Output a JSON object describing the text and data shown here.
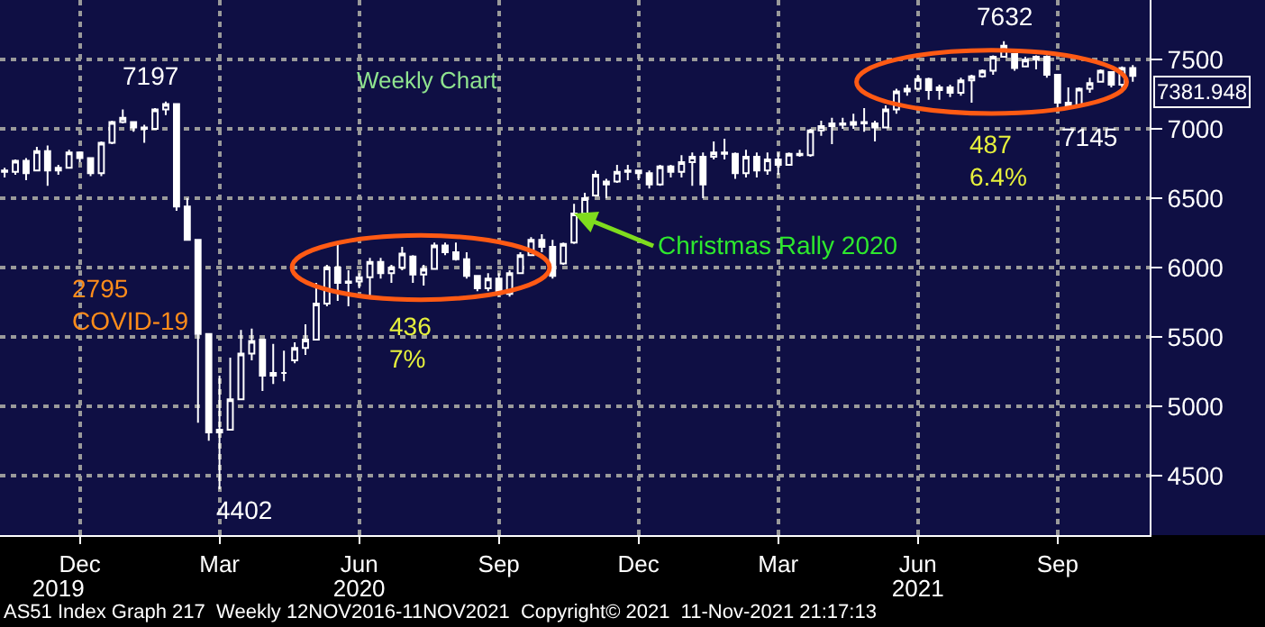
{
  "chart_data": {
    "type": "candlestick",
    "title": "Weekly Chart",
    "color": "#ffffff",
    "grid": true,
    "legend": false,
    "x": [
      "2019-11-04",
      "2019-11-11",
      "2019-11-18",
      "2019-11-25",
      "2019-12-02",
      "2019-12-09",
      "2019-12-16",
      "2019-12-23",
      "2019-12-30",
      "2020-01-06",
      "2020-01-13",
      "2020-01-20",
      "2020-01-27",
      "2020-02-03",
      "2020-02-10",
      "2020-02-17",
      "2020-02-24",
      "2020-03-02",
      "2020-03-09",
      "2020-03-16",
      "2020-03-23",
      "2020-03-30",
      "2020-04-06",
      "2020-04-13",
      "2020-04-20",
      "2020-04-27",
      "2020-05-04",
      "2020-05-11",
      "2020-05-18",
      "2020-05-25",
      "2020-06-01",
      "2020-06-08",
      "2020-06-15",
      "2020-06-22",
      "2020-06-29",
      "2020-07-06",
      "2020-07-13",
      "2020-07-20",
      "2020-07-27",
      "2020-08-03",
      "2020-08-10",
      "2020-08-17",
      "2020-08-24",
      "2020-08-31",
      "2020-09-07",
      "2020-09-14",
      "2020-09-21",
      "2020-09-28",
      "2020-10-05",
      "2020-10-12",
      "2020-10-19",
      "2020-10-26",
      "2020-11-02",
      "2020-11-09",
      "2020-11-16",
      "2020-11-23",
      "2020-11-30",
      "2020-12-07",
      "2020-12-14",
      "2020-12-21",
      "2020-12-28",
      "2021-01-04",
      "2021-01-11",
      "2021-01-18",
      "2021-01-25",
      "2021-02-01",
      "2021-02-08",
      "2021-02-15",
      "2021-02-22",
      "2021-03-01",
      "2021-03-08",
      "2021-03-15",
      "2021-03-22",
      "2021-03-29",
      "2021-04-05",
      "2021-04-12",
      "2021-04-19",
      "2021-04-26",
      "2021-05-03",
      "2021-05-10",
      "2021-05-17",
      "2021-05-24",
      "2021-05-31",
      "2021-06-07",
      "2021-06-14",
      "2021-06-21",
      "2021-06-28",
      "2021-07-05",
      "2021-07-12",
      "2021-07-19",
      "2021-07-26",
      "2021-08-02",
      "2021-08-09",
      "2021-08-16",
      "2021-08-23",
      "2021-08-30",
      "2021-09-06",
      "2021-09-13",
      "2021-09-20",
      "2021-09-27",
      "2021-10-04",
      "2021-10-11",
      "2021-10-18",
      "2021-10-25",
      "2021-11-01",
      "2021-11-08"
    ],
    "ohlc": [
      [
        6700,
        6720,
        6650,
        6690
      ],
      [
        6690,
        6780,
        6670,
        6770
      ],
      [
        6770,
        6790,
        6630,
        6680
      ],
      [
        6700,
        6870,
        6700,
        6840
      ],
      [
        6840,
        6880,
        6590,
        6700
      ],
      [
        6700,
        6740,
        6670,
        6720
      ],
      [
        6720,
        6850,
        6720,
        6830
      ],
      [
        6830,
        6830,
        6760,
        6790
      ],
      [
        6790,
        6790,
        6660,
        6680
      ],
      [
        6680,
        6910,
        6660,
        6900
      ],
      [
        6900,
        7060,
        6890,
        7050
      ],
      [
        7050,
        7140,
        7040,
        7080
      ],
      [
        7050,
        7050,
        6980,
        7010
      ],
      [
        7010,
        7030,
        6900,
        7000
      ],
      [
        7000,
        7150,
        7000,
        7140
      ],
      [
        7140,
        7197,
        7100,
        7180
      ],
      [
        7180,
        7180,
        6410,
        6440
      ],
      [
        6440,
        6500,
        6200,
        6200
      ],
      [
        6200,
        6200,
        4880,
        5520
      ],
      [
        5520,
        5520,
        4750,
        4810
      ],
      [
        4810,
        5220,
        4402,
        4830
      ],
      [
        4830,
        5350,
        4830,
        5050
      ],
      [
        5050,
        5550,
        5050,
        5380
      ],
      [
        5380,
        5560,
        5330,
        5470
      ],
      [
        5480,
        5480,
        5110,
        5220
      ],
      [
        5220,
        5450,
        5160,
        5240
      ],
      [
        5240,
        5400,
        5180,
        5240
      ],
      [
        5330,
        5460,
        5310,
        5420
      ],
      [
        5420,
        5590,
        5370,
        5480
      ],
      [
        5480,
        5890,
        5480,
        5740
      ],
      [
        5740,
        6020,
        5720,
        6000
      ],
      [
        6000,
        6180,
        5760,
        5890
      ],
      [
        5890,
        5980,
        5720,
        5900
      ],
      [
        5900,
        5960,
        5850,
        5930
      ],
      [
        5930,
        6070,
        5790,
        6040
      ],
      [
        6040,
        6070,
        5920,
        5960
      ],
      [
        5960,
        6020,
        5890,
        6000
      ],
      [
        6000,
        6150,
        5980,
        6100
      ],
      [
        6080,
        6090,
        5890,
        5950
      ],
      [
        5950,
        6020,
        5870,
        5990
      ],
      [
        5990,
        6180,
        5990,
        6160
      ],
      [
        6160,
        6180,
        6090,
        6110
      ],
      [
        6110,
        6180,
        6050,
        6060
      ],
      [
        6060,
        6110,
        5920,
        5940
      ],
      [
        5940,
        5940,
        5830,
        5850
      ],
      [
        5850,
        5960,
        5830,
        5920
      ],
      [
        5920,
        5960,
        5790,
        5810
      ],
      [
        5810,
        5980,
        5790,
        5960
      ],
      [
        5960,
        6110,
        5960,
        6090
      ],
      [
        6090,
        6220,
        6090,
        6200
      ],
      [
        6200,
        6240,
        6110,
        6150
      ],
      [
        6150,
        6200,
        5920,
        5940
      ],
      [
        6030,
        6180,
        6020,
        6170
      ],
      [
        6180,
        6460,
        6170,
        6390
      ],
      [
        6390,
        6540,
        6390,
        6500
      ],
      [
        6520,
        6700,
        6520,
        6670
      ],
      [
        6600,
        6640,
        6500,
        6620
      ],
      [
        6620,
        6740,
        6610,
        6690
      ],
      [
        6690,
        6740,
        6630,
        6700
      ],
      [
        6700,
        6700,
        6630,
        6680
      ],
      [
        6680,
        6700,
        6570,
        6600
      ],
      [
        6600,
        6740,
        6590,
        6730
      ],
      [
        6730,
        6740,
        6650,
        6690
      ],
      [
        6690,
        6810,
        6650,
        6760
      ],
      [
        6760,
        6830,
        6590,
        6800
      ],
      [
        6800,
        6830,
        6500,
        6600
      ],
      [
        6800,
        6910,
        6780,
        6830
      ],
      [
        6830,
        6930,
        6780,
        6820
      ],
      [
        6820,
        6830,
        6640,
        6680
      ],
      [
        6680,
        6850,
        6650,
        6800
      ],
      [
        6800,
        6830,
        6650,
        6700
      ],
      [
        6700,
        6830,
        6670,
        6780
      ],
      [
        6780,
        6830,
        6670,
        6740
      ],
      [
        6740,
        6830,
        6740,
        6820
      ],
      [
        6820,
        6850,
        6800,
        6810
      ],
      [
        6810,
        7000,
        6800,
        6990
      ],
      [
        6990,
        7060,
        6950,
        7020
      ],
      [
        7020,
        7080,
        6890,
        7040
      ],
      [
        7040,
        7080,
        7000,
        7030
      ],
      [
        7030,
        7110,
        7000,
        7050
      ],
      [
        7050,
        7150,
        6980,
        7040
      ],
      [
        7040,
        7060,
        6910,
        7010
      ],
      [
        7010,
        7170,
        7010,
        7140
      ],
      [
        7140,
        7290,
        7110,
        7270
      ],
      [
        7270,
        7320,
        7240,
        7290
      ],
      [
        7290,
        7390,
        7280,
        7360
      ],
      [
        7360,
        7370,
        7210,
        7280
      ],
      [
        7280,
        7320,
        7210,
        7300
      ],
      [
        7300,
        7320,
        7230,
        7260
      ],
      [
        7260,
        7370,
        7240,
        7350
      ],
      [
        7350,
        7390,
        7190,
        7380
      ],
      [
        7380,
        7430,
        7370,
        7420
      ],
      [
        7420,
        7530,
        7390,
        7520
      ],
      [
        7520,
        7632,
        7520,
        7600
      ],
      [
        7540,
        7540,
        7420,
        7440
      ],
      [
        7450,
        7520,
        7450,
        7500
      ],
      [
        7500,
        7530,
        7430,
        7520
      ],
      [
        7520,
        7530,
        7370,
        7390
      ],
      [
        7390,
        7390,
        7150,
        7190
      ],
      [
        7190,
        7300,
        7145,
        7170
      ],
      [
        7170,
        7300,
        7170,
        7290
      ],
      [
        7290,
        7370,
        7260,
        7330
      ],
      [
        7340,
        7430,
        7340,
        7420
      ],
      [
        7410,
        7410,
        7300,
        7320
      ],
      [
        7320,
        7450,
        7300,
        7440
      ],
      [
        7440,
        7460,
        7340,
        7381.948
      ]
    ],
    "xlim": [
      "2019-11-01",
      "2021-11-19"
    ],
    "xticks": [
      {
        "value": "2019-12-23",
        "label": "Dec"
      },
      {
        "value": "2020-03-23",
        "label": "Mar"
      },
      {
        "value": "2020-06-22",
        "label": "Jun"
      },
      {
        "value": "2020-09-21",
        "label": "Sep"
      },
      {
        "value": "2020-12-21",
        "label": "Dec"
      },
      {
        "value": "2021-03-22",
        "label": "Mar"
      },
      {
        "value": "2021-06-21",
        "label": "Jun"
      },
      {
        "value": "2021-09-20",
        "label": "Sep"
      }
    ],
    "x2lim": [
      "2019-11-01",
      "2021-11-19"
    ],
    "x2ticks": [
      {
        "value": "2019-12-09",
        "label": "2019"
      },
      {
        "value": "2020-06-22",
        "label": "2020"
      },
      {
        "value": "2021-06-21",
        "label": "2021"
      }
    ],
    "ylim": [
      4070,
      7930
    ],
    "yticks": [
      4500,
      5000,
      5500,
      6000,
      6500,
      7000,
      7500
    ],
    "annotations": [
      {
        "text": "7197",
        "x": "2020-02-17",
        "y": 7197
      },
      {
        "text": "4402",
        "x": "2020-03-23",
        "y": 4402
      },
      {
        "text": "7632",
        "x": "2021-08-16",
        "y": 7632
      },
      {
        "text": "7145",
        "x": "2021-09-27",
        "y": 7145
      },
      "2795\nCOVID-19",
      "436\n7%",
      "487\n6.4%",
      {
        "text": "Christmas Rally 2020",
        "x": "2020-11-09",
        "y": 6390
      },
      {
        "text": "7381.948",
        "x": "2021-11-08",
        "y": 7381.948
      },
      "AS51 Index Graph 217  Weekly 12NOV2016-11NOV2021  Copyright© 2021  11-Nov-2021 21:17:13"
    ]
  }
}
